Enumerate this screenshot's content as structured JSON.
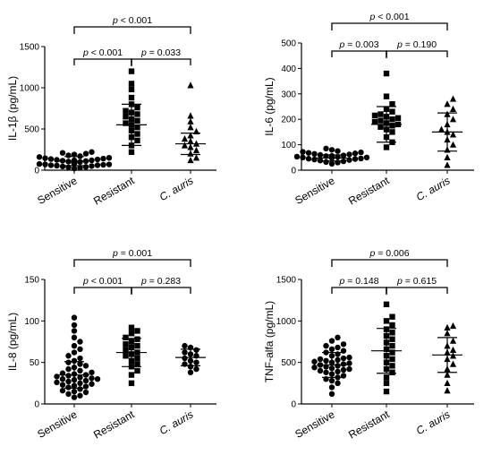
{
  "chart_data": [
    {
      "type": "scatter",
      "ylabel": "IL-1β (pg/mL)",
      "ylim": [
        0,
        1500
      ],
      "yticks": [
        0,
        500,
        1000,
        1500
      ],
      "categories": [
        "Sensitive",
        "Resistant",
        "C. auris"
      ],
      "italic_categories": [
        2
      ],
      "marker_shapes": [
        "circle",
        "square",
        "triangle"
      ],
      "series": [
        {
          "values": [
            20,
            30,
            35,
            40,
            45,
            50,
            55,
            60,
            60,
            65,
            70,
            70,
            75,
            80,
            80,
            85,
            90,
            90,
            95,
            100,
            100,
            105,
            110,
            110,
            115,
            120,
            120,
            125,
            130,
            135,
            140,
            145,
            150,
            160,
            170,
            180,
            190,
            200,
            210,
            220
          ],
          "mean": 110,
          "sd": 55
        },
        {
          "values": [
            220,
            300,
            360,
            400,
            440,
            480,
            520,
            550,
            570,
            600,
            620,
            650,
            680,
            700,
            720,
            760,
            800,
            880,
            980,
            1050,
            1200
          ],
          "mean": 550,
          "sd": 250
        },
        {
          "values": [
            120,
            150,
            200,
            240,
            280,
            300,
            320,
            350,
            380,
            420,
            470,
            520,
            590,
            660,
            1030
          ],
          "mean": 320,
          "sd": 130
        }
      ],
      "comparisons": [
        {
          "from": 0,
          "to": 2,
          "label": "p < 0.001"
        },
        {
          "from": 0,
          "to": 1,
          "label": "p < 0.001"
        },
        {
          "from": 1,
          "to": 2,
          "label": "p = 0.033"
        }
      ]
    },
    {
      "type": "scatter",
      "ylabel": "IL-6 (pg/mL)",
      "ylim": [
        0,
        500
      ],
      "yticks": [
        0,
        100,
        200,
        300,
        400,
        500
      ],
      "categories": [
        "Sensitive",
        "Resistant",
        "C. auris"
      ],
      "italic_categories": [
        2
      ],
      "marker_shapes": [
        "circle",
        "square",
        "triangle"
      ],
      "series": [
        {
          "values": [
            25,
            30,
            32,
            35,
            38,
            40,
            42,
            44,
            45,
            46,
            48,
            50,
            50,
            52,
            53,
            55,
            56,
            58,
            60,
            62,
            64,
            66,
            68,
            70,
            72,
            75,
            80,
            85
          ],
          "mean": 48,
          "sd": 12
        },
        {
          "values": [
            90,
            110,
            130,
            150,
            160,
            170,
            175,
            180,
            185,
            190,
            195,
            200,
            205,
            210,
            215,
            220,
            230,
            240,
            260,
            290,
            380
          ],
          "mean": 180,
          "sd": 70
        },
        {
          "values": [
            20,
            50,
            80,
            100,
            120,
            140,
            150,
            160,
            180,
            200,
            220,
            240,
            260,
            280
          ],
          "mean": 150,
          "sd": 75
        }
      ],
      "comparisons": [
        {
          "from": 0,
          "to": 2,
          "label": "p < 0.001"
        },
        {
          "from": 0,
          "to": 1,
          "label": "p = 0.003"
        },
        {
          "from": 1,
          "to": 2,
          "label": "p = 0.190"
        }
      ]
    },
    {
      "type": "scatter",
      "ylabel": "IL-8 (pg/mL)",
      "ylim": [
        0,
        150
      ],
      "yticks": [
        0,
        50,
        100,
        150
      ],
      "categories": [
        "Sensitive",
        "Resistant",
        "C. auris"
      ],
      "italic_categories": [
        2
      ],
      "marker_shapes": [
        "circle",
        "square",
        "circle"
      ],
      "series": [
        {
          "values": [
            8,
            10,
            12,
            14,
            15,
            16,
            18,
            20,
            21,
            22,
            23,
            24,
            25,
            26,
            27,
            28,
            29,
            30,
            30,
            31,
            32,
            33,
            34,
            35,
            36,
            37,
            38,
            40,
            42,
            44,
            46,
            48,
            50,
            52,
            55,
            58,
            62,
            66,
            70,
            75,
            80,
            88,
            95,
            104
          ],
          "mean": 35,
          "sd": 16
        },
        {
          "values": [
            25,
            35,
            40,
            45,
            48,
            52,
            55,
            58,
            60,
            62,
            65,
            68,
            70,
            72,
            75,
            78,
            80,
            85,
            88,
            92
          ],
          "mean": 62,
          "sd": 17
        },
        {
          "values": [
            38,
            42,
            45,
            48,
            50,
            52,
            55,
            58,
            60,
            62,
            65,
            68,
            70
          ],
          "mean": 56,
          "sd": 10
        }
      ],
      "comparisons": [
        {
          "from": 0,
          "to": 2,
          "label": "p = 0.001"
        },
        {
          "from": 0,
          "to": 1,
          "label": "p < 0.001"
        },
        {
          "from": 1,
          "to": 2,
          "label": "p = 0.283"
        }
      ]
    },
    {
      "type": "scatter",
      "ylabel": "TNF-alfa (pg/mL)",
      "ylim": [
        0,
        1500
      ],
      "yticks": [
        0,
        500,
        1000,
        1500
      ],
      "categories": [
        "Sensitive",
        "Resistant",
        "C. auris"
      ],
      "italic_categories": [
        2
      ],
      "marker_shapes": [
        "circle",
        "square",
        "triangle"
      ],
      "series": [
        {
          "values": [
            120,
            200,
            250,
            280,
            300,
            320,
            340,
            360,
            380,
            390,
            400,
            410,
            420,
            430,
            440,
            450,
            460,
            470,
            480,
            490,
            500,
            510,
            520,
            530,
            540,
            550,
            560,
            580,
            600,
            620,
            640,
            660,
            680,
            700,
            720,
            760,
            800
          ],
          "mean": 470,
          "sd": 150
        },
        {
          "values": [
            150,
            250,
            320,
            380,
            420,
            460,
            500,
            540,
            580,
            620,
            660,
            700,
            740,
            780,
            820,
            860,
            900,
            950,
            1000,
            1050,
            1200
          ],
          "mean": 640,
          "sd": 270
        },
        {
          "values": [
            160,
            250,
            350,
            420,
            480,
            540,
            580,
            620,
            650,
            700,
            760,
            850,
            920,
            940
          ],
          "mean": 590,
          "sd": 210
        }
      ],
      "comparisons": [
        {
          "from": 0,
          "to": 2,
          "label": "p = 0.006"
        },
        {
          "from": 0,
          "to": 1,
          "label": "p = 0.148"
        },
        {
          "from": 1,
          "to": 2,
          "label": "p = 0.615"
        }
      ]
    }
  ]
}
